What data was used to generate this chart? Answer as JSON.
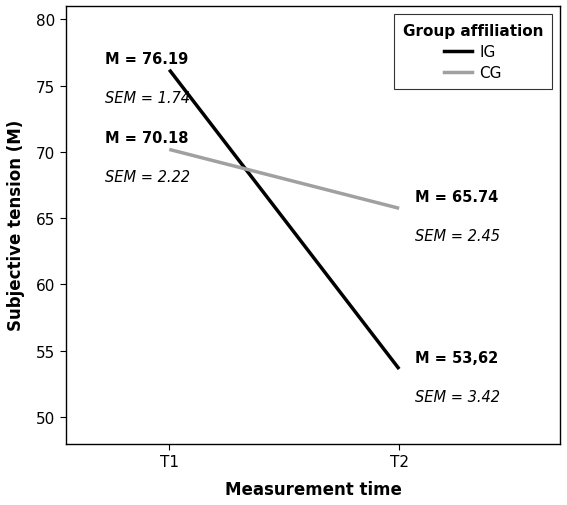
{
  "x_positions": [
    1,
    2
  ],
  "x_labels": [
    "T1",
    "T2"
  ],
  "x_label": "Measurement time",
  "y_label": "Subjective tension (M)",
  "ylim": [
    48,
    81
  ],
  "yticks": [
    50,
    55,
    60,
    65,
    70,
    75,
    80
  ],
  "ig_values": [
    76.19,
    53.62
  ],
  "cg_values": [
    70.18,
    65.74
  ],
  "ig_color": "#000000",
  "cg_color": "#a0a0a0",
  "ig_linewidth": 2.5,
  "cg_linewidth": 2.5,
  "legend_title": "Group affiliation",
  "legend_ig": "IG",
  "legend_cg": "CG",
  "ann_ig_t1_m": "M = 76.19",
  "ann_ig_t1_sem": "SEM = 1.74",
  "ann_cg_t1_m": "M = 70.18",
  "ann_cg_t1_sem": "SEM = 2.22",
  "ann_ig_t2_m": "M = 53,62",
  "ann_ig_t2_sem": "SEM = 3.42",
  "ann_cg_t2_m": "M = 65.74",
  "ann_cg_t2_sem": "SEM = 2.45",
  "background_color": "#ffffff",
  "font_family": "Arial"
}
